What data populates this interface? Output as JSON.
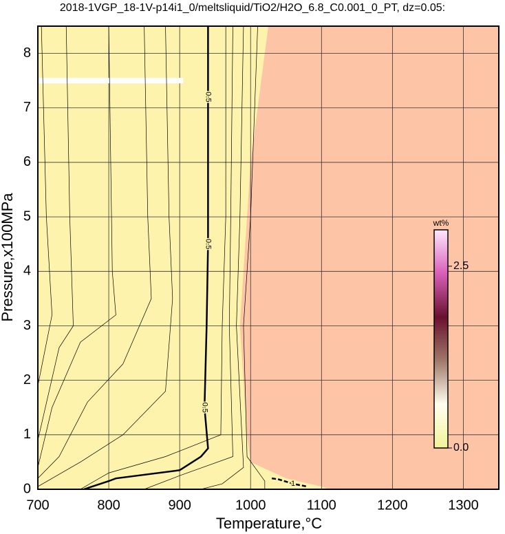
{
  "chart_data": {
    "type": "contour",
    "title": "2018-1VGP_18-1V-p14i1_0/meltsliquid/TiO2/H2O_6.8_C0.001_0_PT, dz=0.05:",
    "x_label": "Temperature,°C",
    "y_label": "Pressure,x100MPa",
    "xlim": [
      700,
      1350
    ],
    "ylim": [
      0,
      8.5
    ],
    "xticks": [
      700,
      800,
      900,
      1000,
      1100,
      1200,
      1300
    ],
    "yticks": [
      0,
      1,
      2,
      3,
      4,
      5,
      6,
      7,
      8
    ],
    "grid": true,
    "background_color": "#fdf3ac",
    "region": {
      "color": "#fdc4a6",
      "x": [
        1025,
        1010,
        1000,
        990,
        985,
        990,
        995,
        1000,
        1050,
        1100,
        1110
      ],
      "y": [
        8.5,
        7,
        6,
        4,
        3,
        2,
        1,
        0.5,
        0.2,
        0.05,
        0
      ]
    },
    "gap": {
      "color": "#ffffff",
      "x": [
        700,
        905
      ],
      "y": [
        7.5,
        7.5
      ]
    },
    "contours": [
      {
        "level": 0.5,
        "x": [
          765,
          800,
          810,
          900,
          930,
          940,
          935,
          938,
          940,
          940,
          940,
          940
        ],
        "y": [
          0,
          0.15,
          0.2,
          0.35,
          0.6,
          0.75,
          1.5,
          3,
          4.5,
          6,
          7.2,
          8.5
        ]
      },
      {
        "level": 1,
        "x": [
          1030,
          1040,
          1060,
          1080
        ],
        "y": [
          0.2,
          0.18,
          0.1,
          0.05
        ]
      },
      {
        "x": [
          705,
          712,
          720,
          700
        ],
        "y": [
          8.5,
          5,
          3.2,
          1.9
        ]
      },
      {
        "x": [
          740,
          745,
          750,
          730,
          700
        ],
        "y": [
          8.5,
          5,
          3,
          2.6,
          0.9
        ]
      },
      {
        "x": [
          800,
          805,
          810,
          760,
          720,
          700
        ],
        "y": [
          8.5,
          4,
          3.2,
          2.7,
          1.5,
          0.4
        ]
      },
      {
        "x": [
          850,
          855,
          860,
          820,
          770,
          730,
          700
        ],
        "y": [
          8.5,
          5,
          3.5,
          2.3,
          1.6,
          0.6,
          0.2
        ]
      },
      {
        "x": [
          880,
          885,
          890,
          880,
          820,
          760,
          700
        ],
        "y": [
          8.5,
          5,
          3.5,
          1.8,
          1.0,
          0.5,
          0.05
        ]
      },
      {
        "x": [
          965,
          965,
          960,
          958,
          880,
          800,
          760
        ],
        "y": [
          8.5,
          5,
          3,
          1.0,
          0.6,
          0.3,
          0
        ]
      },
      {
        "x": [
          975,
          972,
          970,
          975,
          900,
          850
        ],
        "y": [
          8.5,
          5,
          3,
          0.6,
          0.25,
          0
        ]
      },
      {
        "x": [
          990,
          985,
          980,
          990,
          960,
          930
        ],
        "y": [
          8.5,
          5,
          3,
          0.4,
          0.1,
          0
        ]
      },
      {
        "x": [
          1010,
          1000,
          990,
          995,
          1020,
          1020
        ],
        "y": [
          8.5,
          5,
          3,
          0.6,
          0.15,
          0
        ]
      }
    ],
    "colorbar": {
      "label": "wt%",
      "zlim": [
        0,
        3
      ],
      "ticks": [
        {
          "value": 0,
          "label": "0.0"
        },
        {
          "value": 2.5,
          "label": "2.5"
        }
      ],
      "colormap": [
        "#f2f29a",
        "#fffff0",
        "#a07868",
        "#6a1030",
        "#d860b8",
        "#ffe8ff"
      ]
    }
  }
}
